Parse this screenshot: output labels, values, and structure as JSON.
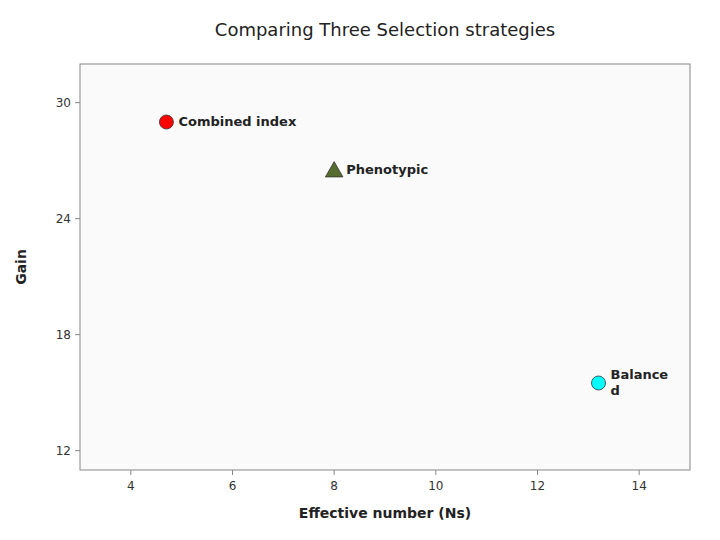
{
  "chart_data": {
    "type": "scatter",
    "title": "Comparing Three Selection strategies",
    "xlabel": "Effective number (Ns)",
    "ylabel": "Gain",
    "xlim": [
      3,
      15
    ],
    "ylim": [
      11,
      32
    ],
    "xticks": [
      4,
      6,
      8,
      10,
      12,
      14
    ],
    "yticks": [
      12,
      18,
      24,
      30
    ],
    "grid": false,
    "series": [
      {
        "name": "Combined index",
        "color": "#FF0000",
        "marker": "circle",
        "x": [
          4.7
        ],
        "values": [
          29.0
        ]
      },
      {
        "name": "Phenotypic",
        "color": "#556B2F",
        "marker": "triangle",
        "x": [
          8.0
        ],
        "values": [
          26.5
        ]
      },
      {
        "name": "Balance\nd",
        "color": "#00FFFF",
        "marker": "circle",
        "x": [
          13.2
        ],
        "values": [
          15.5
        ]
      }
    ]
  }
}
